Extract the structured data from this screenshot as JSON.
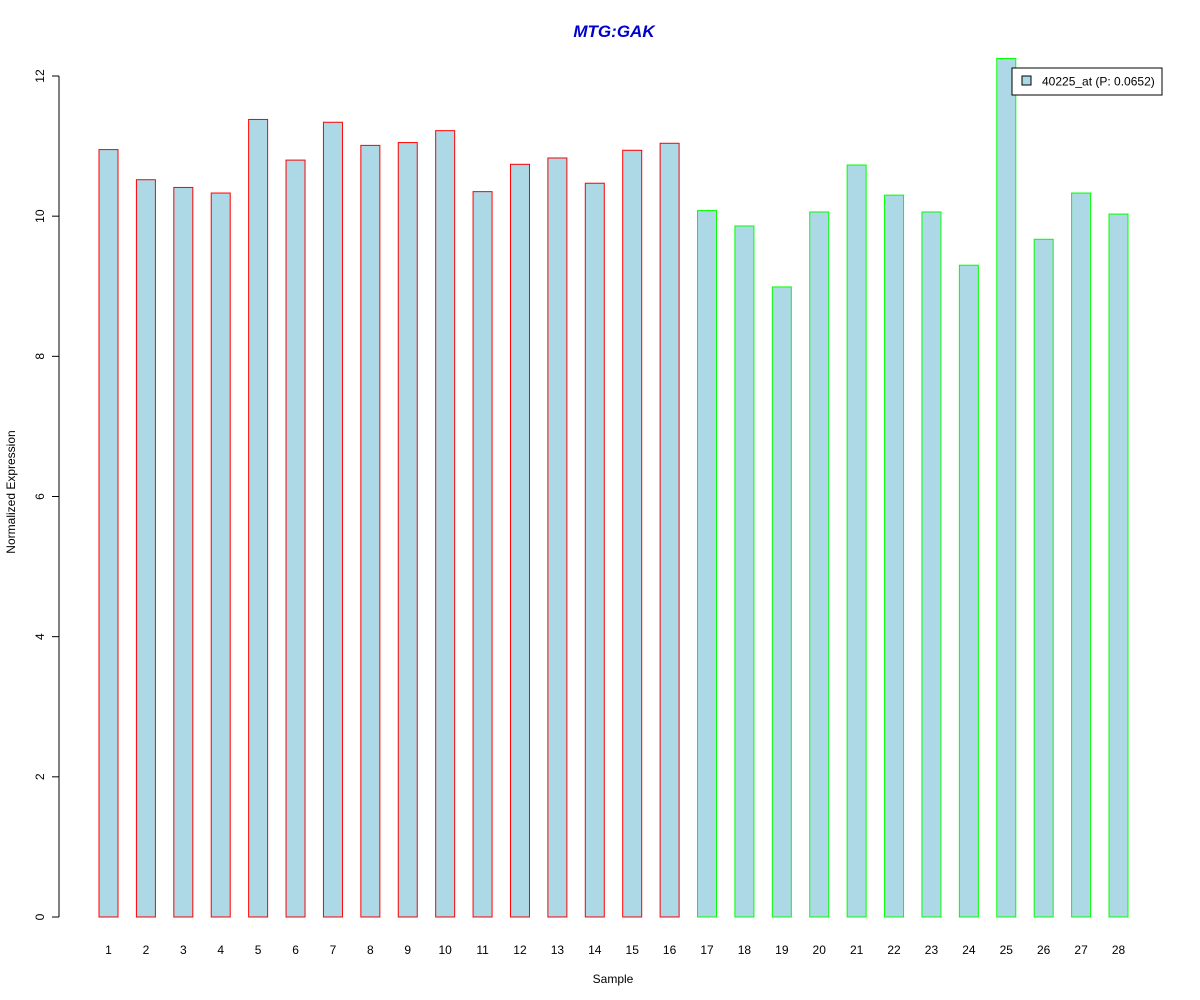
{
  "chart_data": {
    "type": "bar",
    "title": "MTG:GAK",
    "xlabel": "Sample",
    "ylabel": "Normalized Expression",
    "categories": [
      "1",
      "2",
      "3",
      "4",
      "5",
      "6",
      "7",
      "8",
      "9",
      "10",
      "11",
      "12",
      "13",
      "14",
      "15",
      "16",
      "17",
      "18",
      "19",
      "20",
      "21",
      "22",
      "23",
      "24",
      "25",
      "26",
      "27",
      "28"
    ],
    "values": [
      10.95,
      10.52,
      10.41,
      10.33,
      11.38,
      10.8,
      11.34,
      11.01,
      11.05,
      11.22,
      10.35,
      10.74,
      10.83,
      10.47,
      10.94,
      11.04,
      10.08,
      9.86,
      8.99,
      10.06,
      10.73,
      10.3,
      10.06,
      9.3,
      12.25,
      9.67,
      10.33,
      10.03
    ],
    "groups": [
      1,
      1,
      1,
      1,
      1,
      1,
      1,
      1,
      1,
      1,
      1,
      1,
      1,
      1,
      1,
      1,
      2,
      2,
      2,
      2,
      2,
      2,
      2,
      2,
      2,
      2,
      2,
      2
    ],
    "ylim": [
      0,
      12.3
    ],
    "yticks": [
      0,
      2,
      4,
      6,
      8,
      10,
      12
    ],
    "grid": false,
    "legend_position": "top-right",
    "legend": [
      {
        "label": "40225_at (P: 0.0652)",
        "color": "#ADD8E6"
      }
    ],
    "colors": {
      "bar_fill": "#ADD8E6",
      "group1_border": "#FF0000",
      "group2_border": "#00FF00",
      "title": "#0000CD",
      "axis": "#000000"
    }
  }
}
